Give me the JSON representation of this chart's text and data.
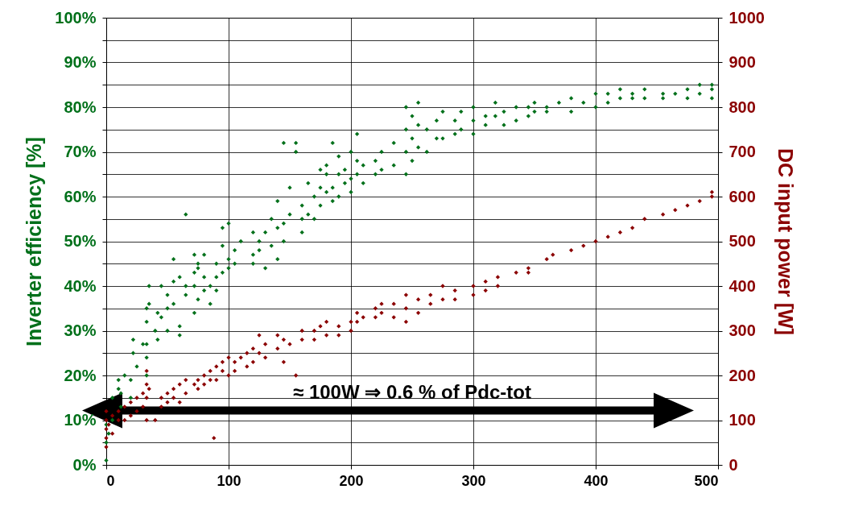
{
  "chart_data": {
    "type": "scatter",
    "ylabel": "Inverter efficiency [%]",
    "y2label": "DC input power [W]",
    "annotations": [
      "≈ 100W ⇒ 0.6 % of Pdc-tot"
    ],
    "marker": "diamond",
    "grid": true,
    "xlim": [
      0,
      500
    ],
    "xticks": [
      0,
      100,
      200,
      300,
      400,
      500
    ],
    "ylim": [
      0,
      100
    ],
    "yticks": [
      {
        "value": 0,
        "label": "0%"
      },
      {
        "value": 5,
        "label": null
      },
      {
        "value": 10,
        "label": "10%"
      },
      {
        "value": 15,
        "label": null
      },
      {
        "value": 20,
        "label": "20%"
      },
      {
        "value": 25,
        "label": null
      },
      {
        "value": 30,
        "label": "30%"
      },
      {
        "value": 35,
        "label": null
      },
      {
        "value": 40,
        "label": "40%"
      },
      {
        "value": 45,
        "label": null
      },
      {
        "value": 50,
        "label": "50%"
      },
      {
        "value": 55,
        "label": null
      },
      {
        "value": 60,
        "label": "60%"
      },
      {
        "value": 65,
        "label": null
      },
      {
        "value": 70,
        "label": "70%"
      },
      {
        "value": 75,
        "label": null
      },
      {
        "value": 80,
        "label": "80%"
      },
      {
        "value": 85,
        "label": null
      },
      {
        "value": 90,
        "label": "90%"
      },
      {
        "value": 95,
        "label": null
      },
      {
        "value": 100,
        "label": "100%"
      }
    ],
    "y2lim": [
      0,
      1000
    ],
    "y2ticks": [
      0,
      100,
      200,
      300,
      400,
      500,
      600,
      700,
      800,
      900,
      1000
    ],
    "series": [
      {
        "color": "#00701a",
        "x": [
          0,
          0,
          0,
          2,
          5,
          5,
          10,
          10,
          12,
          12,
          15,
          20,
          20,
          22,
          22,
          25,
          30,
          33,
          33,
          33,
          33,
          33,
          35,
          35,
          40,
          42,
          42,
          45,
          45,
          50,
          50,
          50,
          55,
          55,
          55,
          60,
          60,
          60,
          65,
          65,
          65,
          72,
          72,
          72,
          72,
          75,
          75,
          75,
          80,
          80,
          80,
          85,
          85,
          90,
          90,
          90,
          95,
          95,
          95,
          100,
          100,
          100,
          105,
          105,
          110,
          120,
          120,
          120,
          125,
          125,
          130,
          130,
          135,
          135,
          140,
          140,
          140,
          145,
          145,
          145,
          150,
          150,
          155,
          155,
          160,
          160,
          160,
          165,
          165,
          170,
          170,
          175,
          175,
          175,
          180,
          180,
          180,
          185,
          185,
          185,
          190,
          190,
          190,
          195,
          195,
          200,
          200,
          200,
          205,
          205,
          205,
          210,
          210,
          220,
          220,
          225,
          225,
          235,
          235,
          245,
          245,
          245,
          245,
          250,
          250,
          250,
          255,
          255,
          255,
          262,
          262,
          270,
          270,
          275,
          275,
          285,
          285,
          290,
          290,
          300,
          300,
          300,
          310,
          310,
          318,
          318,
          325,
          325,
          335,
          335,
          345,
          345,
          350,
          350,
          360,
          360,
          370,
          380,
          380,
          390,
          400,
          400,
          410,
          410,
          420,
          420,
          430,
          430,
          440,
          440,
          455,
          455,
          465,
          475,
          475,
          485,
          485,
          495,
          495,
          495
        ],
        "values": [
          1,
          5,
          9,
          7,
          10,
          15,
          17,
          19,
          13,
          16,
          20,
          15,
          19,
          25,
          28,
          22,
          27,
          35,
          32,
          27,
          24,
          20,
          40,
          36,
          30,
          34,
          28,
          33,
          40,
          38,
          35,
          30,
          46,
          41,
          36,
          29,
          31,
          42,
          56,
          40,
          38,
          47,
          43,
          40,
          34,
          44,
          45,
          37,
          47,
          42,
          39,
          36,
          40,
          45,
          42,
          39,
          53,
          49,
          43,
          54,
          44,
          46,
          48,
          45,
          50,
          47,
          52,
          45,
          48,
          50,
          44,
          52,
          55,
          49,
          59,
          53,
          46,
          72,
          54,
          50,
          62,
          56,
          72,
          70,
          58,
          55,
          52,
          63,
          56,
          60,
          55,
          66,
          62,
          58,
          67,
          65,
          61,
          72,
          62,
          59,
          69,
          65,
          60,
          66,
          63,
          70,
          64,
          61,
          74,
          68,
          65,
          67,
          63,
          65,
          68,
          70,
          66,
          72,
          67,
          80,
          75,
          70,
          65,
          78,
          73,
          68,
          81,
          76,
          71,
          75,
          70,
          77,
          73,
          79,
          73,
          77,
          74,
          79,
          75,
          80,
          77,
          74,
          78,
          76,
          81,
          78,
          79,
          76,
          80,
          77,
          80,
          78,
          81,
          79,
          79,
          80,
          81,
          82,
          79,
          81,
          83,
          80,
          83,
          81,
          84,
          82,
          83,
          82,
          84,
          82,
          83,
          82,
          83,
          84,
          82,
          85,
          83,
          85,
          84,
          82
        ]
      },
      {
        "color": "#8b0000",
        "axis": "y2",
        "x": [
          0,
          0,
          0,
          0,
          0,
          2,
          5,
          5,
          10,
          10,
          15,
          15,
          20,
          20,
          25,
          25,
          30,
          30,
          33,
          33,
          33,
          33,
          35,
          40,
          45,
          45,
          50,
          50,
          55,
          55,
          60,
          60,
          65,
          65,
          72,
          75,
          75,
          80,
          80,
          85,
          85,
          88,
          90,
          90,
          95,
          95,
          100,
          100,
          105,
          105,
          110,
          115,
          115,
          120,
          120,
          125,
          125,
          130,
          130,
          140,
          140,
          145,
          145,
          150,
          155,
          160,
          160,
          170,
          170,
          175,
          180,
          180,
          190,
          190,
          200,
          200,
          205,
          205,
          210,
          220,
          220,
          225,
          225,
          235,
          235,
          245,
          245,
          245,
          255,
          255,
          265,
          265,
          275,
          275,
          285,
          285,
          300,
          300,
          310,
          310,
          320,
          320,
          335,
          345,
          345,
          360,
          365,
          380,
          390,
          400,
          410,
          420,
          430,
          440,
          455,
          465,
          475,
          485,
          495,
          495
        ],
        "values": [
          60,
          80,
          100,
          120,
          40,
          90,
          110,
          70,
          120,
          100,
          100,
          130,
          110,
          140,
          150,
          120,
          160,
          130,
          210,
          180,
          150,
          100,
          170,
          100,
          130,
          150,
          140,
          160,
          170,
          150,
          180,
          140,
          190,
          160,
          180,
          190,
          170,
          200,
          180,
          210,
          190,
          60,
          220,
          190,
          230,
          210,
          240,
          200,
          230,
          210,
          240,
          250,
          220,
          260,
          230,
          290,
          250,
          270,
          240,
          290,
          260,
          280,
          230,
          270,
          200,
          300,
          280,
          300,
          280,
          310,
          320,
          290,
          310,
          290,
          320,
          300,
          340,
          320,
          330,
          350,
          330,
          360,
          340,
          360,
          330,
          380,
          350,
          320,
          370,
          340,
          380,
          360,
          400,
          370,
          390,
          370,
          400,
          380,
          410,
          390,
          420,
          400,
          430,
          440,
          430,
          460,
          470,
          480,
          490,
          500,
          510,
          520,
          530,
          550,
          560,
          570,
          580,
          590,
          600,
          610
        ]
      }
    ]
  }
}
